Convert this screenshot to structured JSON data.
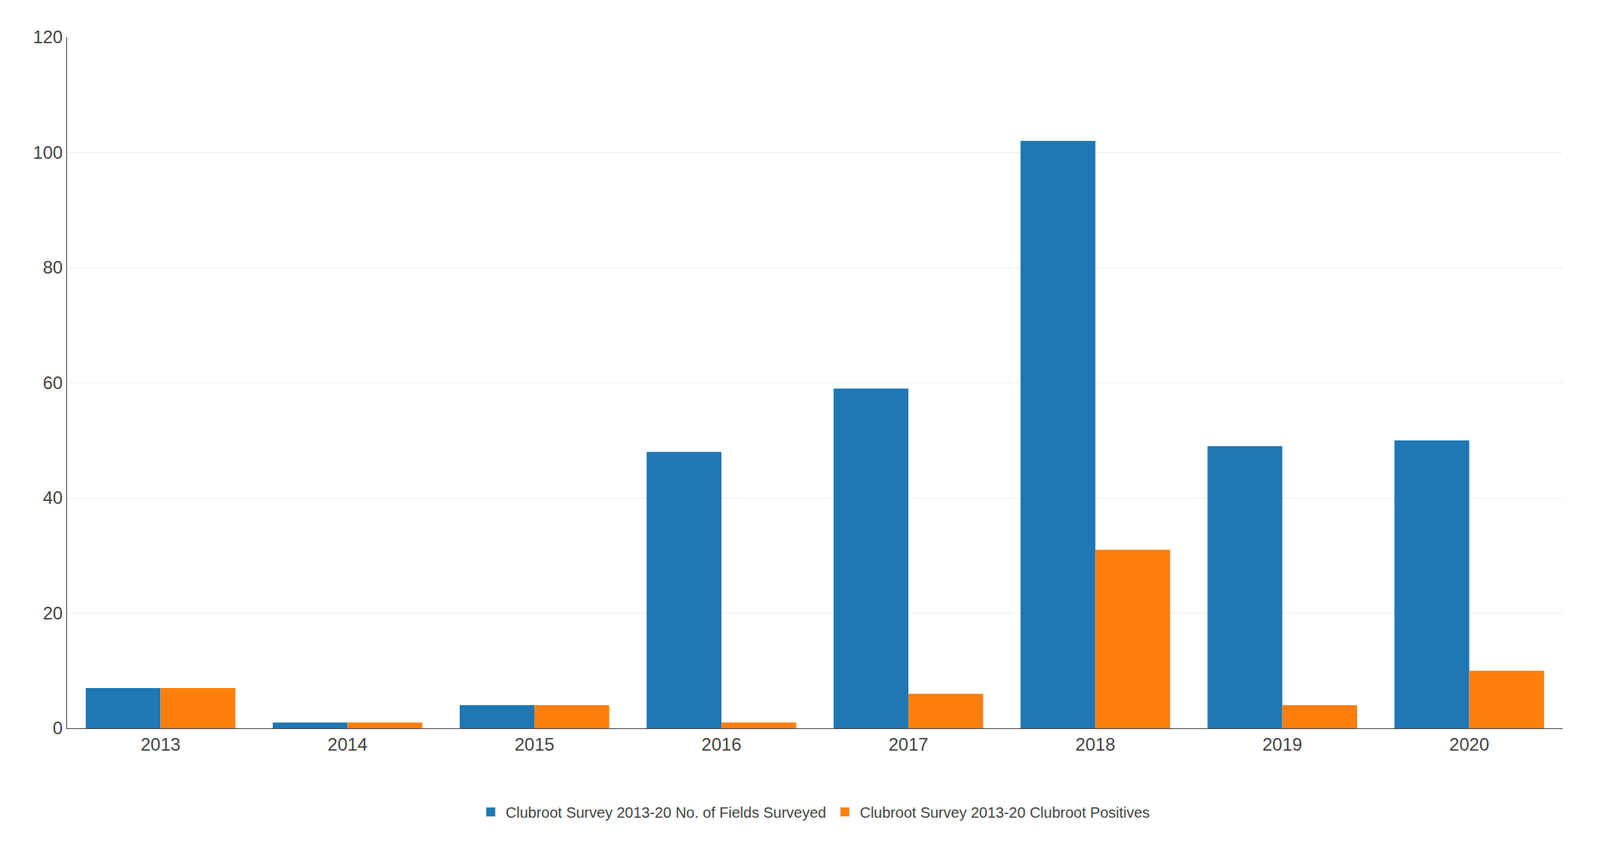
{
  "chart_data": {
    "type": "bar",
    "categories": [
      "2013",
      "2014",
      "2015",
      "2016",
      "2017",
      "2018",
      "2019",
      "2020"
    ],
    "series": [
      {
        "name": "Clubroot Survey 2013-20 No. of Fields Surveyed",
        "values": [
          7,
          1,
          4,
          48,
          59,
          102,
          49,
          50
        ]
      },
      {
        "name": "Clubroot Survey 2013-20 Clubroot Positives",
        "values": [
          7,
          1,
          4,
          1,
          6,
          31,
          4,
          10
        ]
      }
    ],
    "ylim": [
      0,
      120
    ],
    "yticks": [
      0,
      20,
      40,
      60,
      80,
      100,
      120
    ],
    "grid": true,
    "legend": "bottom"
  }
}
